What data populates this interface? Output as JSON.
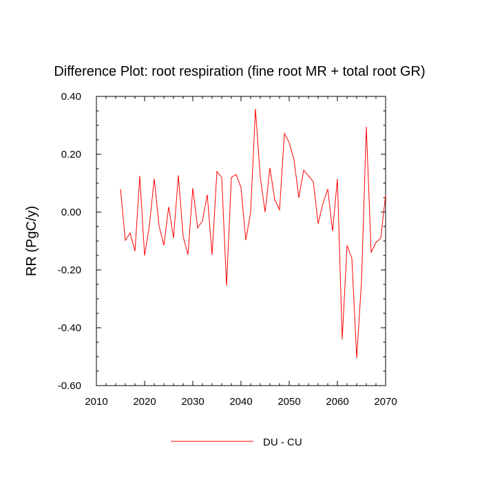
{
  "chart_data": {
    "type": "line",
    "title": "Difference Plot: root respiration (fine root MR + total root GR)",
    "xlabel": "",
    "ylabel": "RR  (PgC/y)",
    "xlim": [
      2010,
      2070
    ],
    "ylim": [
      -0.6,
      0.4
    ],
    "xticks": [
      2010,
      2020,
      2030,
      2040,
      2050,
      2060,
      2070
    ],
    "xtick_labels": [
      "2010",
      "2020",
      "2030",
      "2040",
      "2050",
      "2060",
      "2070"
    ],
    "yticks": [
      0.4,
      0.2,
      0.0,
      -0.2,
      -0.4,
      -0.6
    ],
    "ytick_labels": [
      "0.40",
      "0.20",
      "0.00",
      "-0.20",
      "-0.40",
      "-0.60"
    ],
    "legend_position": "bottom-center",
    "series": [
      {
        "name": "DU - CU",
        "color": "#ff0000",
        "x": [
          2015,
          2016,
          2017,
          2018,
          2019,
          2020,
          2021,
          2022,
          2023,
          2024,
          2025,
          2026,
          2027,
          2028,
          2029,
          2030,
          2031,
          2032,
          2033,
          2034,
          2035,
          2036,
          2037,
          2038,
          2039,
          2040,
          2041,
          2042,
          2043,
          2044,
          2045,
          2046,
          2047,
          2048,
          2049,
          2050,
          2051,
          2052,
          2053,
          2054,
          2055,
          2056,
          2057,
          2058,
          2059,
          2060,
          2061,
          2062,
          2063,
          2064,
          2065,
          2066,
          2067,
          2068,
          2069,
          2070
        ],
        "values": [
          0.08,
          -0.098,
          -0.072,
          -0.135,
          0.125,
          -0.15,
          -0.045,
          0.115,
          -0.048,
          -0.115,
          0.018,
          -0.09,
          0.127,
          -0.085,
          -0.147,
          0.083,
          -0.055,
          -0.03,
          0.06,
          -0.148,
          0.14,
          0.12,
          -0.255,
          0.12,
          0.13,
          0.085,
          -0.097,
          0.0,
          0.357,
          0.12,
          0.0,
          0.153,
          0.043,
          0.008,
          0.272,
          0.24,
          0.18,
          0.05,
          0.145,
          0.125,
          0.105,
          -0.04,
          0.03,
          0.08,
          -0.066,
          0.115,
          -0.44,
          -0.115,
          -0.16,
          -0.505,
          -0.24,
          0.295,
          -0.14,
          -0.105,
          -0.09,
          0.06
        ]
      }
    ]
  }
}
